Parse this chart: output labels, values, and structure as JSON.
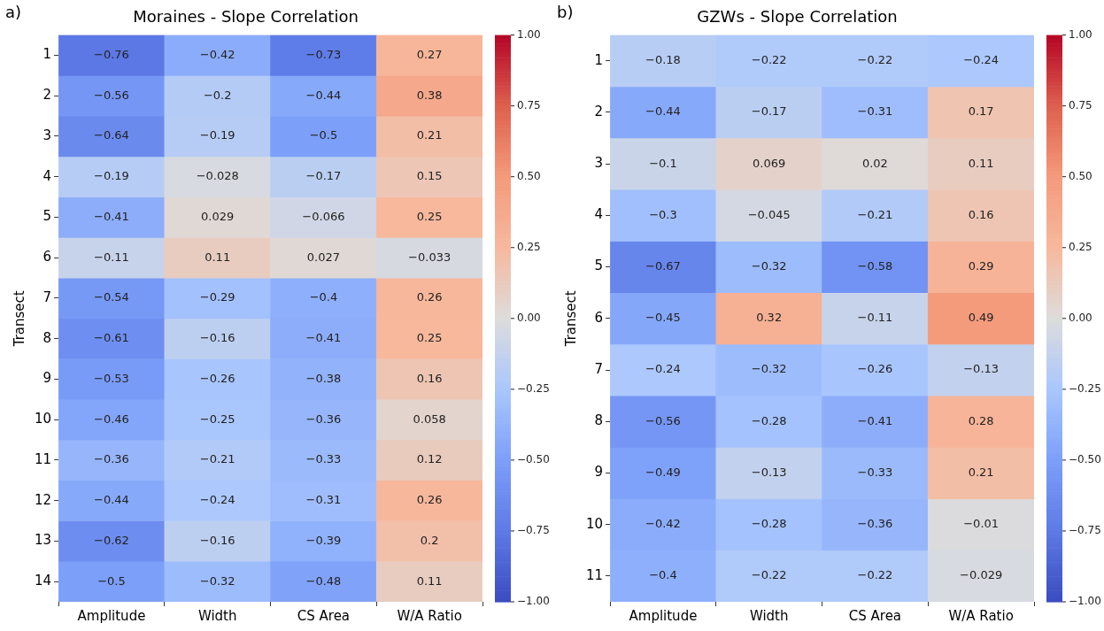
{
  "chart_data": [
    {
      "type": "heatmap",
      "title": "Moraines - Slope Correlation",
      "ylabel": "Transect",
      "annotations": [
        "a)"
      ],
      "data_labels": true,
      "categories": [
        "Amplitude",
        "Width",
        "CS Area",
        "W/A Ratio"
      ],
      "y_categories": [
        "1",
        "2",
        "3",
        "4",
        "5",
        "6",
        "7",
        "8",
        "9",
        "10",
        "11",
        "12",
        "13",
        "14"
      ],
      "cells": [
        [
          -0.76,
          -0.42,
          -0.73,
          0.27
        ],
        [
          -0.56,
          -0.2,
          -0.44,
          0.38
        ],
        [
          -0.64,
          -0.19,
          -0.5,
          0.21
        ],
        [
          -0.19,
          -0.028,
          -0.17,
          0.15
        ],
        [
          -0.41,
          0.029,
          -0.066,
          0.25
        ],
        [
          -0.11,
          0.11,
          0.027,
          -0.033
        ],
        [
          -0.54,
          -0.29,
          -0.4,
          0.26
        ],
        [
          -0.61,
          -0.16,
          -0.41,
          0.25
        ],
        [
          -0.53,
          -0.26,
          -0.38,
          0.16
        ],
        [
          -0.46,
          -0.25,
          -0.36,
          0.058
        ],
        [
          -0.36,
          -0.21,
          -0.33,
          0.12
        ],
        [
          -0.44,
          -0.24,
          -0.31,
          0.26
        ],
        [
          -0.62,
          -0.16,
          -0.39,
          0.2
        ],
        [
          -0.5,
          -0.32,
          -0.48,
          0.11
        ]
      ],
      "clim": [
        -1,
        1
      ],
      "cticks": [
        {
          "value": -1,
          "label": "−1.00"
        },
        {
          "value": -0.75,
          "label": "−0.75"
        },
        {
          "value": -0.5,
          "label": "−0.50"
        },
        {
          "value": -0.25,
          "label": "−0.25"
        },
        {
          "value": 0,
          "label": "0.00"
        },
        {
          "value": 0.25,
          "label": "0.25"
        },
        {
          "value": 0.5,
          "label": "0.50"
        },
        {
          "value": 0.75,
          "label": "0.75"
        },
        {
          "value": 1,
          "label": "1.00"
        }
      ]
    },
    {
      "type": "heatmap",
      "title": "GZWs - Slope Correlation",
      "ylabel": "Transect",
      "annotations": [
        "b)"
      ],
      "data_labels": true,
      "categories": [
        "Amplitude",
        "Width",
        "CS Area",
        "W/A Ratio"
      ],
      "y_categories": [
        "1",
        "2",
        "3",
        "4",
        "5",
        "6",
        "7",
        "8",
        "9",
        "10",
        "11"
      ],
      "cells": [
        [
          -0.18,
          -0.22,
          -0.22,
          -0.24
        ],
        [
          -0.44,
          -0.17,
          -0.31,
          0.17
        ],
        [
          -0.1,
          0.069,
          0.02,
          0.11
        ],
        [
          -0.3,
          -0.045,
          -0.21,
          0.16
        ],
        [
          -0.67,
          -0.32,
          -0.58,
          0.29
        ],
        [
          -0.45,
          0.32,
          -0.11,
          0.49
        ],
        [
          -0.24,
          -0.32,
          -0.26,
          -0.13
        ],
        [
          -0.56,
          -0.28,
          -0.41,
          0.28
        ],
        [
          -0.49,
          -0.13,
          -0.33,
          0.21
        ],
        [
          -0.42,
          -0.28,
          -0.36,
          -0.01
        ],
        [
          -0.4,
          -0.22,
          -0.22,
          -0.029
        ]
      ],
      "clim": [
        -1,
        1
      ],
      "cticks": [
        {
          "value": -1,
          "label": "−1.00"
        },
        {
          "value": -0.75,
          "label": "−0.75"
        },
        {
          "value": -0.5,
          "label": "−0.50"
        },
        {
          "value": -0.25,
          "label": "−0.25"
        },
        {
          "value": 0,
          "label": "0.00"
        },
        {
          "value": 0.25,
          "label": "0.25"
        },
        {
          "value": 0.5,
          "label": "0.50"
        },
        {
          "value": 0.75,
          "label": "0.75"
        },
        {
          "value": 1,
          "label": "1.00"
        }
      ]
    }
  ]
}
